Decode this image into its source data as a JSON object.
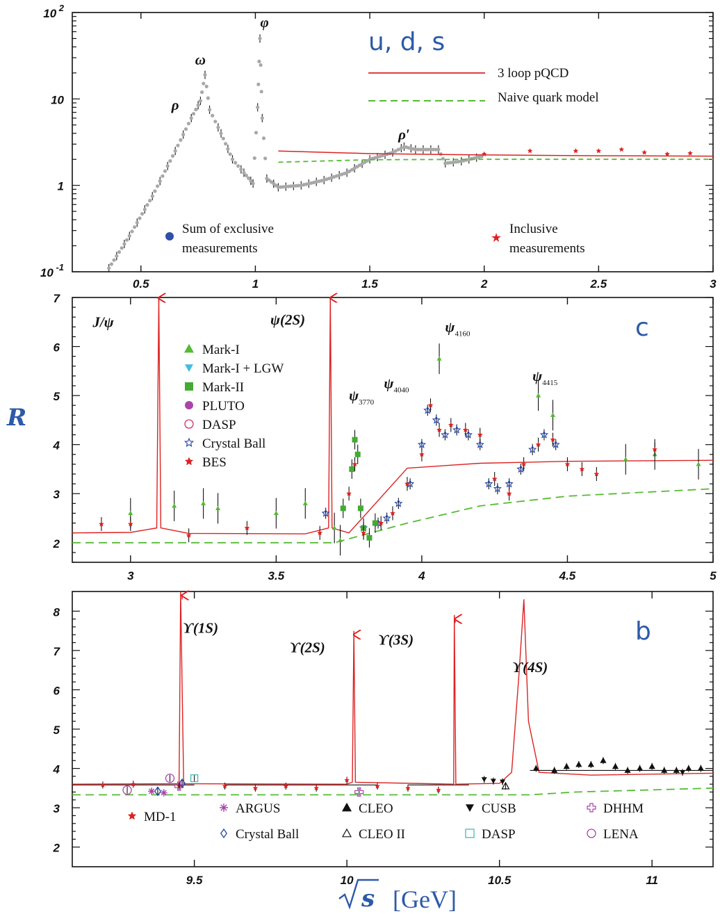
{
  "colors": {
    "pqcd": "#dd2222",
    "naive": "#55bb33",
    "data_gray": "#a8a8a8",
    "errbar": "#111111",
    "tag": "#2e5aa8",
    "markI": "#55bb33",
    "lgw": "#44bbdd",
    "markII": "#44aa33",
    "pluto": "#aa44aa",
    "dasp": "#cc3366",
    "crystal": "#2244aa",
    "bes": "#dd2222"
  },
  "ylabel": "R",
  "xlabel_symbol": "s",
  "xlabel_unit": "[GeV]",
  "chart_data": [
    {
      "type": "line",
      "panel": "uds",
      "tag": "u, d, s",
      "yscale": "log",
      "xlim": [
        0.2,
        3.0
      ],
      "ylim": [
        0.1,
        100
      ],
      "x_ticks": [
        {
          "v": 0.5,
          "label": "0.5"
        },
        {
          "v": 1,
          "label": "1"
        },
        {
          "v": 1.5,
          "label": "1.5"
        },
        {
          "v": 2,
          "label": "2"
        },
        {
          "v": 2.5,
          "label": "2.5"
        },
        {
          "v": 3,
          "label": "3"
        }
      ],
      "y_ticks": [
        {
          "v": 0.1,
          "base": "10",
          "exp": "-1"
        },
        {
          "v": 1,
          "base": "1",
          "exp": ""
        },
        {
          "v": 10,
          "base": "10",
          "exp": ""
        },
        {
          "v": 100,
          "base": "10",
          "exp": "2"
        }
      ],
      "legend": {
        "pqcd": "3 loop pQCD",
        "naive": "Naive quark model",
        "exclusive_line1": "Sum of exclusive",
        "exclusive_line2": "measurements",
        "inclusive_line1": "Inclusive",
        "inclusive_line2": "measurements"
      },
      "resonances": [
        {
          "label": "ρ",
          "x": 0.65,
          "y": 7.5
        },
        {
          "label": "ω",
          "x": 0.76,
          "y": 25
        },
        {
          "label": "φ",
          "x": 1.04,
          "y": 68
        },
        {
          "label": "ρ′",
          "x": 1.65,
          "y": 3.4
        }
      ],
      "exclusive_curve": [
        [
          0.36,
          0.11
        ],
        [
          0.45,
          0.26
        ],
        [
          0.55,
          0.75
        ],
        [
          0.65,
          2.5
        ],
        [
          0.72,
          6
        ],
        [
          0.76,
          9.5
        ],
        [
          0.78,
          19
        ],
        [
          0.8,
          7.5
        ],
        [
          0.85,
          4
        ],
        [
          0.9,
          2
        ],
        [
          0.95,
          1.4
        ],
        [
          0.99,
          1.05
        ],
        [
          1.01,
          8
        ],
        [
          1.02,
          50
        ],
        [
          1.03,
          6
        ],
        [
          1.05,
          1.2
        ],
        [
          1.1,
          0.95
        ],
        [
          1.2,
          1.0
        ],
        [
          1.3,
          1.15
        ],
        [
          1.4,
          1.4
        ],
        [
          1.5,
          2.0
        ],
        [
          1.6,
          2.4
        ],
        [
          1.65,
          2.8
        ],
        [
          1.7,
          2.6
        ],
        [
          1.8,
          2.6
        ],
        [
          1.83,
          1.8
        ],
        [
          1.9,
          1.9
        ],
        [
          2.0,
          2.2
        ]
      ],
      "pqcd_curve": [
        [
          1.1,
          2.5
        ],
        [
          1.5,
          2.33
        ],
        [
          2.0,
          2.25
        ],
        [
          2.5,
          2.2
        ],
        [
          3.0,
          2.18
        ]
      ],
      "naive_curve": [
        [
          1.1,
          1.85
        ],
        [
          1.5,
          1.98
        ],
        [
          2.0,
          2.0
        ],
        [
          3.0,
          2.0
        ]
      ],
      "inclusive_points": [
        [
          2.0,
          2.3
        ],
        [
          2.2,
          2.5
        ],
        [
          2.4,
          2.5
        ],
        [
          2.5,
          2.5
        ],
        [
          2.6,
          2.6
        ],
        [
          2.7,
          2.4
        ],
        [
          2.8,
          2.3
        ],
        [
          2.9,
          2.35
        ]
      ]
    },
    {
      "type": "line",
      "panel": "charm",
      "tag": "c",
      "xlim": [
        2.8,
        5.0
      ],
      "ylim": [
        1.6,
        7.0
      ],
      "x_ticks": [
        {
          "v": 3,
          "label": "3"
        },
        {
          "v": 3.5,
          "label": "3.5"
        },
        {
          "v": 4,
          "label": "4"
        },
        {
          "v": 4.5,
          "label": "4.5"
        },
        {
          "v": 5,
          "label": "5"
        }
      ],
      "y_ticks": [
        {
          "v": 2,
          "label": "2"
        },
        {
          "v": 3,
          "label": "3"
        },
        {
          "v": 4,
          "label": "4"
        },
        {
          "v": 5,
          "label": "5"
        },
        {
          "v": 6,
          "label": "6"
        },
        {
          "v": 7,
          "label": "7"
        }
      ],
      "legend": [
        {
          "key": "markI",
          "label": "Mark-I",
          "marker": "tri_up"
        },
        {
          "key": "lgw",
          "label": "Mark-I + LGW",
          "marker": "tri_down"
        },
        {
          "key": "markII",
          "label": "Mark-II",
          "marker": "square"
        },
        {
          "key": "pluto",
          "label": "PLUTO",
          "marker": "dot"
        },
        {
          "key": "dasp",
          "label": "DASP",
          "marker": "circle_open"
        },
        {
          "key": "crystal",
          "label": "Crystal Ball",
          "marker": "star_open"
        },
        {
          "key": "bes",
          "label": "BES",
          "marker": "star"
        }
      ],
      "resonances": [
        {
          "label": "J/ψ",
          "sub": "",
          "x": 2.87,
          "y": 6.4
        },
        {
          "label": "ψ(2S)",
          "sub": "",
          "x": 3.48,
          "y": 6.45
        },
        {
          "label": "ψ",
          "sub": "3770",
          "x": 3.75,
          "y": 4.9
        },
        {
          "label": "ψ",
          "sub": "4040",
          "x": 3.87,
          "y": 5.15
        },
        {
          "label": "ψ",
          "sub": "4160",
          "x": 4.08,
          "y": 6.3
        },
        {
          "label": "ψ",
          "sub": "4415",
          "x": 4.38,
          "y": 5.3
        }
      ],
      "pqcd_curve": [
        [
          2.8,
          2.2
        ],
        [
          3.0,
          2.21
        ],
        [
          3.09,
          2.3
        ],
        [
          3.097,
          7.0
        ],
        [
          3.104,
          2.3
        ],
        [
          3.2,
          2.19
        ],
        [
          3.6,
          2.18
        ],
        [
          3.68,
          2.3
        ],
        [
          3.686,
          7.0
        ],
        [
          3.692,
          2.3
        ],
        [
          3.75,
          2.2
        ],
        [
          3.95,
          3.52
        ],
        [
          4.2,
          3.62
        ],
        [
          4.5,
          3.66
        ],
        [
          5.0,
          3.68
        ]
      ],
      "naive_curve": [
        [
          2.8,
          2.0
        ],
        [
          3.7,
          2.0
        ],
        [
          3.95,
          2.4
        ],
        [
          4.2,
          2.75
        ],
        [
          4.5,
          2.95
        ],
        [
          5.0,
          3.1
        ]
      ],
      "points_bes": [
        [
          2.9,
          2.38
        ],
        [
          3.0,
          2.38
        ],
        [
          3.2,
          2.15
        ],
        [
          3.4,
          2.3
        ],
        [
          3.65,
          2.2
        ],
        [
          3.75,
          3.0
        ],
        [
          3.77,
          3.6
        ],
        [
          3.8,
          2.2
        ],
        [
          3.86,
          2.4
        ],
        [
          3.9,
          2.6
        ],
        [
          3.95,
          3.2
        ],
        [
          4.0,
          3.8
        ],
        [
          4.03,
          4.8
        ],
        [
          4.06,
          4.3
        ],
        [
          4.1,
          4.4
        ],
        [
          4.15,
          4.3
        ],
        [
          4.2,
          4.2
        ],
        [
          4.25,
          3.3
        ],
        [
          4.3,
          3.0
        ],
        [
          4.35,
          3.6
        ],
        [
          4.4,
          4.0
        ],
        [
          4.45,
          4.1
        ],
        [
          4.5,
          3.6
        ],
        [
          4.55,
          3.5
        ],
        [
          4.6,
          3.4
        ],
        [
          4.8,
          3.9
        ]
      ],
      "points_crystal": [
        [
          3.67,
          2.6
        ],
        [
          3.8,
          2.3
        ],
        [
          3.85,
          2.4
        ],
        [
          3.88,
          2.5
        ],
        [
          3.92,
          2.8
        ],
        [
          3.96,
          3.2
        ],
        [
          4.0,
          4.0
        ],
        [
          4.02,
          4.7
        ],
        [
          4.05,
          4.5
        ],
        [
          4.08,
          4.2
        ],
        [
          4.12,
          4.3
        ],
        [
          4.16,
          4.2
        ],
        [
          4.2,
          4.0
        ],
        [
          4.23,
          3.2
        ],
        [
          4.26,
          3.1
        ],
        [
          4.3,
          3.2
        ],
        [
          4.34,
          3.5
        ],
        [
          4.38,
          3.9
        ],
        [
          4.42,
          4.2
        ],
        [
          4.46,
          4.0
        ]
      ],
      "points_markII": [
        [
          3.73,
          2.7
        ],
        [
          3.76,
          3.5
        ],
        [
          3.77,
          4.1
        ],
        [
          3.78,
          3.8
        ],
        [
          3.79,
          2.7
        ],
        [
          3.8,
          2.3
        ],
        [
          3.82,
          2.1
        ],
        [
          3.84,
          2.4
        ]
      ],
      "points_markI": [
        [
          3.0,
          2.6
        ],
        [
          3.15,
          2.75
        ],
        [
          3.25,
          2.8
        ],
        [
          3.3,
          2.7
        ],
        [
          3.5,
          2.6
        ],
        [
          3.6,
          2.8
        ],
        [
          3.7,
          2.3
        ],
        [
          3.72,
          2.05
        ],
        [
          4.06,
          5.75
        ],
        [
          4.4,
          5.0
        ],
        [
          4.45,
          4.6
        ],
        [
          4.7,
          3.7
        ],
        [
          4.8,
          3.8
        ],
        [
          4.95,
          3.6
        ]
      ]
    },
    {
      "type": "line",
      "panel": "bottom",
      "tag": "b",
      "xlim": [
        9.1,
        11.2
      ],
      "ylim": [
        1.5,
        8.5
      ],
      "x_ticks": [
        {
          "v": 9.5,
          "label": "9.5"
        },
        {
          "v": 10,
          "label": "10"
        },
        {
          "v": 10.5,
          "label": "10.5"
        },
        {
          "v": 11,
          "label": "11"
        }
      ],
      "y_ticks": [
        {
          "v": 2,
          "label": "2"
        },
        {
          "v": 3,
          "label": "3"
        },
        {
          "v": 4,
          "label": "4"
        },
        {
          "v": 5,
          "label": "5"
        },
        {
          "v": 6,
          "label": "6"
        },
        {
          "v": 7,
          "label": "7"
        },
        {
          "v": 8,
          "label": "8"
        }
      ],
      "legend": [
        {
          "key": "md1",
          "label": "MD-1",
          "marker": "star",
          "color": "#dd2222"
        },
        {
          "key": "argus",
          "label": "ARGUS",
          "marker": "asterisk",
          "color": "#aa44aa"
        },
        {
          "key": "cleo",
          "label": "CLEO",
          "marker": "tri_up",
          "color": "#111111"
        },
        {
          "key": "cusb",
          "label": "CUSB",
          "marker": "tri_down",
          "color": "#111111"
        },
        {
          "key": "dhhm",
          "label": "DHHM",
          "marker": "cross_open",
          "color": "#aa44aa"
        },
        {
          "key": "cb",
          "label": "Crystal Ball",
          "marker": "diamond_open",
          "color": "#2244aa"
        },
        {
          "key": "cleo2",
          "label": "CLEO II",
          "marker": "tri_up_open",
          "color": "#111111"
        },
        {
          "key": "dasp",
          "label": "DASP",
          "marker": "square_open",
          "color": "#44bbbb"
        },
        {
          "key": "lena",
          "label": "LENA",
          "marker": "circle_open",
          "color": "#aa44aa"
        }
      ],
      "resonances": [
        {
          "label": "ϒ(1S)",
          "x": 9.52,
          "y": 7.45
        },
        {
          "label": "ϒ(2S)",
          "x": 9.87,
          "y": 6.95
        },
        {
          "label": "ϒ(3S)",
          "x": 10.16,
          "y": 7.15
        },
        {
          "label": "ϒ(4S)",
          "x": 10.6,
          "y": 6.45
        }
      ],
      "pqcd_curve": [
        [
          9.1,
          3.6
        ],
        [
          9.45,
          3.61
        ],
        [
          9.455,
          8.5
        ],
        [
          9.465,
          3.61
        ],
        [
          10.0,
          3.6
        ],
        [
          10.018,
          3.65
        ],
        [
          10.023,
          7.5
        ],
        [
          10.028,
          3.65
        ],
        [
          10.35,
          3.6
        ],
        [
          10.352,
          7.9
        ],
        [
          10.357,
          3.6
        ],
        [
          10.5,
          3.62
        ],
        [
          10.54,
          3.9
        ],
        [
          10.565,
          6.5
        ],
        [
          10.58,
          8.3
        ],
        [
          10.595,
          5.2
        ],
        [
          10.63,
          3.9
        ],
        [
          10.8,
          3.83
        ],
        [
          11.2,
          3.88
        ]
      ],
      "naive_curve": [
        [
          9.1,
          3.33
        ],
        [
          10.6,
          3.33
        ],
        [
          10.75,
          3.4
        ],
        [
          11.2,
          3.5
        ]
      ],
      "points_md1": [
        [
          9.2,
          3.58
        ],
        [
          9.3,
          3.6
        ],
        [
          9.45,
          3.55
        ],
        [
          9.6,
          3.55
        ],
        [
          9.7,
          3.5
        ],
        [
          9.8,
          3.55
        ],
        [
          9.9,
          3.5
        ],
        [
          10.0,
          3.7
        ],
        [
          10.1,
          3.55
        ],
        [
          10.2,
          3.5
        ],
        [
          10.3,
          3.45
        ]
      ],
      "points_cleo": [
        [
          10.62,
          4.0
        ],
        [
          10.68,
          3.95
        ],
        [
          10.72,
          4.05
        ],
        [
          10.76,
          4.1
        ],
        [
          10.8,
          4.1
        ],
        [
          10.84,
          4.2
        ],
        [
          10.88,
          4.05
        ],
        [
          10.92,
          3.95
        ],
        [
          10.96,
          4.0
        ],
        [
          11.0,
          4.05
        ],
        [
          11.04,
          3.95
        ],
        [
          11.08,
          3.95
        ],
        [
          11.12,
          4.0
        ],
        [
          11.16,
          4.0
        ]
      ],
      "points_cusb": [
        [
          10.45,
          3.72
        ],
        [
          10.48,
          3.68
        ],
        [
          10.51,
          3.66
        ],
        [
          11.1,
          3.9
        ]
      ],
      "points_cleo2": [
        [
          10.52,
          3.55
        ]
      ],
      "points_cb": [
        [
          9.38,
          3.42
        ],
        [
          9.46,
          3.62
        ]
      ],
      "points_lena": [
        [
          9.28,
          3.45
        ],
        [
          9.42,
          3.75
        ]
      ],
      "points_argus": [
        [
          9.36,
          3.42
        ],
        [
          9.4,
          3.38
        ]
      ],
      "points_dasp": [
        [
          9.5,
          3.75
        ]
      ],
      "points_dhhm": [
        [
          9.45,
          3.55
        ],
        [
          10.04,
          3.4
        ]
      ]
    }
  ]
}
